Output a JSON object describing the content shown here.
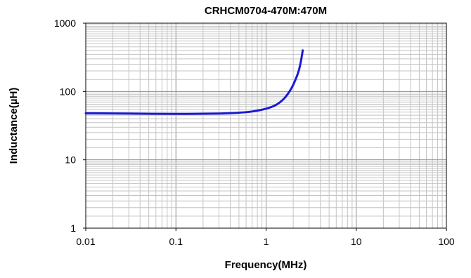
{
  "chart_data": {
    "type": "line",
    "title": "CRHCM0704-470M:470M",
    "xlabel": "Frequency(MHz)",
    "ylabel": "Inductance(µH)",
    "x_scale": "log",
    "y_scale": "log",
    "xlim": [
      0.01,
      100
    ],
    "ylim": [
      1,
      1000
    ],
    "x_ticks": [
      "0.01",
      "0.1",
      "1",
      "10",
      "100"
    ],
    "y_ticks": [
      "1",
      "10",
      "100",
      "1000"
    ],
    "grid": true,
    "legend": "none",
    "series": [
      {
        "color": "#1a1ad6",
        "x": [
          0.01,
          0.03,
          0.1,
          0.3,
          0.5,
          0.7,
          1.0,
          1.3,
          1.6,
          1.9,
          2.1,
          2.3,
          2.45,
          2.55
        ],
        "y": [
          48,
          47.5,
          47,
          47.5,
          49,
          51,
          56,
          64,
          80,
          110,
          145,
          200,
          290,
          400
        ]
      }
    ]
  }
}
